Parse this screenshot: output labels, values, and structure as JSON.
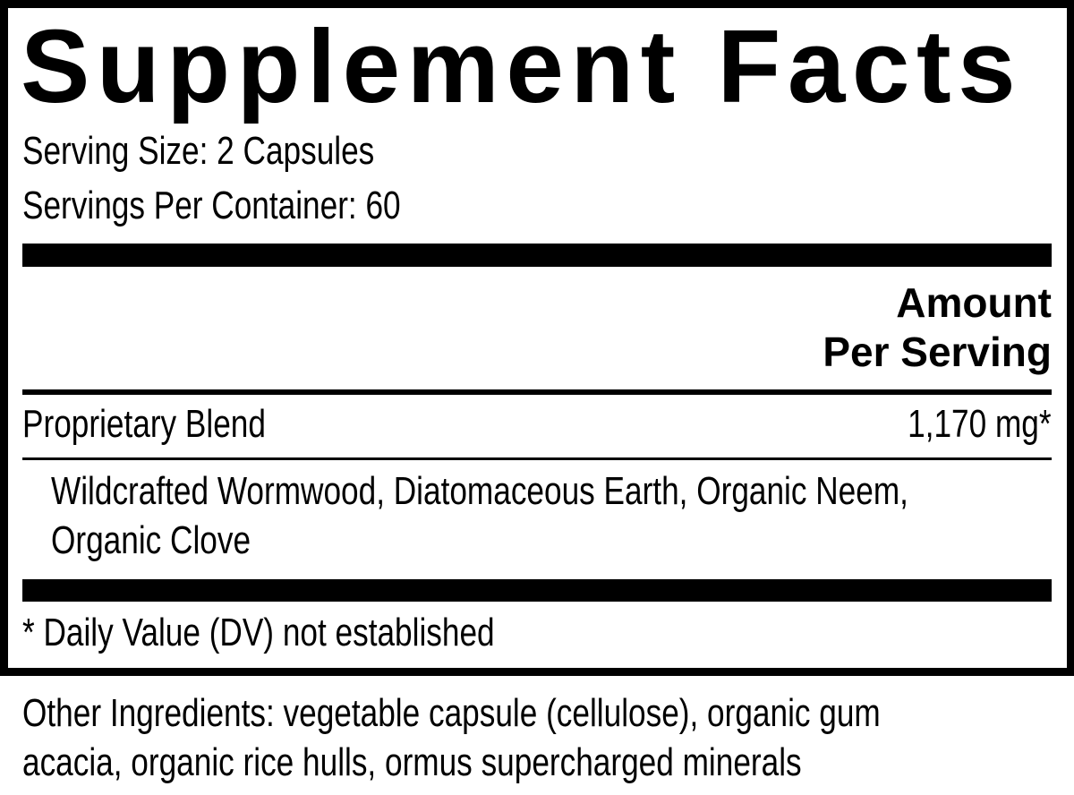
{
  "label": {
    "title": "Supplement Facts",
    "serving_size": "Serving Size: 2 Capsules",
    "servings_per_container": "Servings Per Container: 60",
    "column_header_line1": "Amount",
    "column_header_line2": "Per Serving",
    "rows": [
      {
        "name": "Proprietary Blend",
        "amount": "1,170 mg*"
      }
    ],
    "blend_ingredients_line1": "Wildcrafted Wormwood, Diatomaceous Earth, Organic Neem,",
    "blend_ingredients_line2": "Organic Clove",
    "footnote": "* Daily Value (DV) not established"
  },
  "other_ingredients_line1": "Other Ingredients: vegetable capsule (cellulose), organic gum",
  "other_ingredients_line2": "acacia, organic rice hulls, ormus supercharged minerals"
}
